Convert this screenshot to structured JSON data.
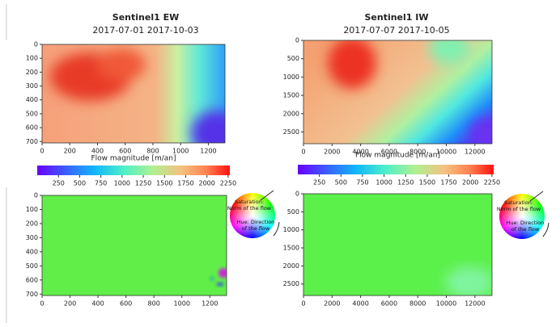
{
  "chart_data": [
    {
      "type": "image",
      "title": "Sentinel1 EW",
      "subtitle": "2017-07-01 2017-10-03",
      "xlabel": "Flow magnitude [m/an]",
      "xlim": [
        0,
        1320
      ],
      "xticks": [
        0,
        200,
        400,
        600,
        800,
        1000,
        1200
      ],
      "ylim": [
        0,
        710
      ],
      "yticks": [
        0,
        100,
        200,
        300,
        400,
        500,
        600,
        700
      ],
      "colorbar": {
        "lim": [
          0,
          2270
        ],
        "ticks": [
          250,
          500,
          750,
          1000,
          1250,
          1500,
          1750,
          2000,
          2250
        ]
      }
    },
    {
      "type": "image",
      "title": "Sentinel1 IW",
      "subtitle": "2017-07-07 2017-10-05",
      "xlabel": "Flow magnitude [m/an]",
      "xlim": [
        0,
        13200
      ],
      "xticks": [
        0,
        2000,
        4000,
        6000,
        8000,
        10000,
        12000
      ],
      "ylim": [
        0,
        2820
      ],
      "yticks": [
        0,
        500,
        1000,
        1500,
        2000,
        2500
      ],
      "colorbar": {
        "lim": [
          0,
          2270
        ],
        "ticks": [
          250,
          500,
          750,
          1000,
          1250,
          1500,
          1750,
          2000,
          2250
        ]
      }
    },
    {
      "type": "image",
      "xlim": [
        0,
        1320
      ],
      "xticks": [
        0,
        200,
        400,
        600,
        800,
        1000,
        1200
      ],
      "ylim": [
        0,
        710
      ],
      "yticks": [
        0,
        100,
        200,
        300,
        400,
        500,
        600,
        700
      ],
      "legend": [
        [
          "Saturation:",
          "Norm of the flow"
        ],
        [
          "Hue: Direction",
          "of the flow"
        ]
      ]
    },
    {
      "type": "image",
      "xlim": [
        0,
        13200
      ],
      "xticks": [
        0,
        2000,
        4000,
        6000,
        8000,
        10000,
        12000
      ],
      "ylim": [
        0,
        2820
      ],
      "yticks": [
        0,
        500,
        1000,
        1500,
        2000,
        2500
      ],
      "legend": [
        [
          "Saturation:",
          "Norm of the flow"
        ],
        [
          "Hue: Direction",
          "of the flow"
        ]
      ]
    }
  ]
}
